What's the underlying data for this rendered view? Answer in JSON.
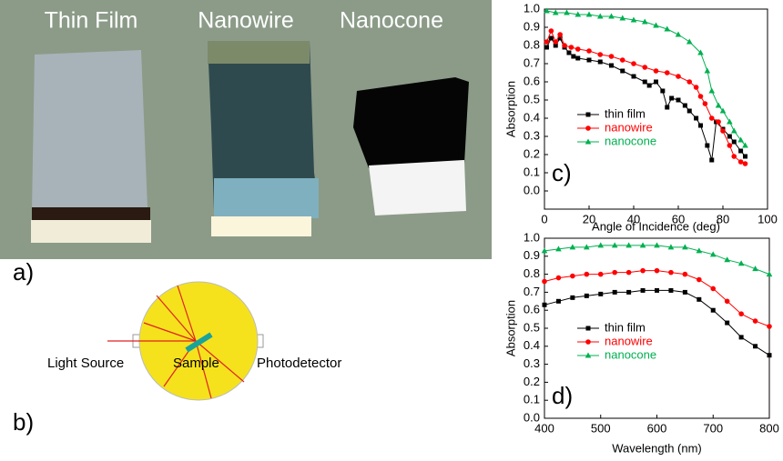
{
  "photo": {
    "labels": [
      "Thin Film",
      "Nanowire",
      "Nanocone"
    ]
  },
  "panel_labels": [
    "a)",
    "b)",
    "c)",
    "d)"
  ],
  "diagram": {
    "light_source": "Light Source",
    "sample": "Sample",
    "photodetector": "Photodetector"
  },
  "chart_data": [
    {
      "type": "line",
      "x_label": "Angle of Incidence (deg)",
      "y_label": "Absorption",
      "xlim": [
        0,
        100
      ],
      "xticks": [
        0,
        20,
        40,
        60,
        80,
        100
      ],
      "ylim": [
        -0.1,
        1.0
      ],
      "yticks": [
        {
          "value": 0,
          "label": "0.0"
        },
        0.1,
        0.2,
        0.3,
        0.4,
        0.5,
        0.6,
        0.7,
        0.8,
        0.9,
        {
          "value": 1,
          "label": "1.0"
        }
      ],
      "legend": "lower left",
      "series": [
        {
          "name": "thin film",
          "color": "#000000",
          "marker": "square",
          "x": [
            1,
            3,
            5,
            7,
            9,
            11,
            13,
            15,
            20,
            25,
            30,
            35,
            40,
            45,
            47,
            50,
            53,
            55,
            57,
            60,
            63,
            65,
            68,
            70,
            73,
            75,
            77,
            80,
            83,
            85,
            88,
            90
          ],
          "values": [
            0.79,
            0.84,
            0.8,
            0.84,
            0.79,
            0.76,
            0.74,
            0.73,
            0.72,
            0.71,
            0.69,
            0.66,
            0.63,
            0.6,
            0.58,
            0.6,
            0.55,
            0.46,
            0.51,
            0.5,
            0.47,
            0.44,
            0.4,
            0.36,
            0.25,
            0.17,
            0.38,
            0.34,
            0.3,
            0.27,
            0.22,
            0.19
          ]
        },
        {
          "name": "nanowire",
          "color": "#ff0000",
          "marker": "circle",
          "x": [
            1,
            3,
            5,
            7,
            9,
            12,
            15,
            20,
            25,
            30,
            35,
            40,
            45,
            50,
            55,
            60,
            65,
            68,
            70,
            72,
            75,
            78,
            80,
            83,
            85,
            88,
            90
          ],
          "values": [
            0.82,
            0.88,
            0.82,
            0.86,
            0.8,
            0.79,
            0.78,
            0.77,
            0.75,
            0.74,
            0.72,
            0.7,
            0.68,
            0.66,
            0.65,
            0.63,
            0.6,
            0.57,
            0.52,
            0.48,
            0.4,
            0.38,
            0.33,
            0.25,
            0.19,
            0.16,
            0.15
          ]
        },
        {
          "name": "nanocone",
          "color": "#00b050",
          "marker": "triangle",
          "x": [
            1,
            5,
            10,
            15,
            20,
            25,
            30,
            35,
            40,
            45,
            50,
            55,
            60,
            65,
            70,
            73,
            75,
            78,
            80,
            83,
            85,
            88,
            90
          ],
          "values": [
            0.99,
            0.98,
            0.98,
            0.97,
            0.97,
            0.96,
            0.96,
            0.95,
            0.94,
            0.93,
            0.91,
            0.89,
            0.86,
            0.82,
            0.76,
            0.66,
            0.55,
            0.47,
            0.44,
            0.38,
            0.33,
            0.28,
            0.25
          ]
        }
      ]
    },
    {
      "type": "line",
      "x_label": "Wavelength (nm)",
      "y_label": "Absorption",
      "xlim": [
        400,
        800
      ],
      "xticks": [
        400,
        500,
        600,
        700,
        800
      ],
      "ylim": [
        0,
        1.0
      ],
      "yticks": [
        {
          "value": 0,
          "label": "0.0"
        },
        0.1,
        0.2,
        0.3,
        0.4,
        0.5,
        0.6,
        0.7,
        0.8,
        0.9,
        {
          "value": 1,
          "label": "1.0"
        }
      ],
      "legend": "lower left",
      "series": [
        {
          "name": "thin film",
          "color": "#000000",
          "marker": "square",
          "x": [
            400,
            425,
            450,
            475,
            500,
            525,
            550,
            575,
            600,
            625,
            650,
            675,
            700,
            725,
            750,
            775,
            800
          ],
          "values": [
            0.63,
            0.65,
            0.67,
            0.68,
            0.69,
            0.7,
            0.7,
            0.71,
            0.71,
            0.71,
            0.7,
            0.66,
            0.6,
            0.53,
            0.45,
            0.4,
            0.35
          ]
        },
        {
          "name": "nanowire",
          "color": "#ff0000",
          "marker": "circle",
          "x": [
            400,
            425,
            450,
            475,
            500,
            525,
            550,
            575,
            600,
            625,
            650,
            675,
            700,
            725,
            750,
            775,
            800
          ],
          "values": [
            0.76,
            0.78,
            0.79,
            0.8,
            0.8,
            0.81,
            0.81,
            0.82,
            0.82,
            0.81,
            0.8,
            0.77,
            0.72,
            0.65,
            0.58,
            0.54,
            0.51
          ]
        },
        {
          "name": "nanocone",
          "color": "#00b050",
          "marker": "triangle",
          "x": [
            400,
            425,
            450,
            475,
            500,
            525,
            550,
            575,
            600,
            625,
            650,
            675,
            700,
            725,
            750,
            775,
            800
          ],
          "values": [
            0.93,
            0.94,
            0.95,
            0.95,
            0.96,
            0.96,
            0.96,
            0.96,
            0.96,
            0.95,
            0.95,
            0.93,
            0.91,
            0.88,
            0.86,
            0.83,
            0.8
          ]
        }
      ]
    }
  ]
}
